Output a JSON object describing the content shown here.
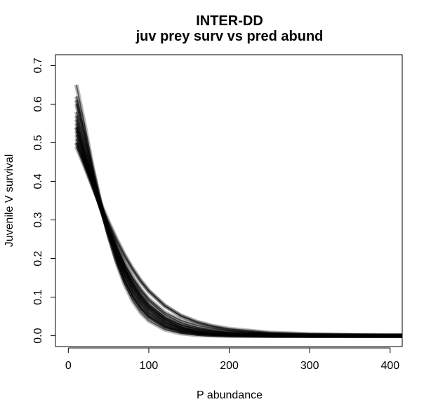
{
  "chart_data": {
    "type": "line",
    "title": "INTER-DD",
    "subtitle": "juv prey surv vs pred abund",
    "xlabel": "P abundance",
    "ylabel": "Juvenile V survival",
    "xlim": [
      -16,
      415
    ],
    "ylim": [
      -0.028,
      0.728
    ],
    "xticks": [
      0,
      100,
      200,
      300,
      400
    ],
    "yticks": [
      0.0,
      0.1,
      0.2,
      0.3,
      0.4,
      0.5,
      0.6,
      0.7
    ],
    "xtick_labels": [
      "0",
      "100",
      "200",
      "300",
      "400"
    ],
    "ytick_labels": [
      "0.0",
      "0.1",
      "0.2",
      "0.3",
      "0.4",
      "0.5",
      "0.6",
      "0.7"
    ],
    "grid": false,
    "legend": "none",
    "line_color": "#000000",
    "x": [
      10,
      20,
      30,
      40,
      50,
      60,
      70,
      80,
      90,
      100,
      120,
      140,
      160,
      180,
      200,
      250,
      300,
      350,
      400,
      415
    ],
    "series": [
      {
        "values": [
          0.54,
          0.465,
          0.4,
          0.335,
          0.275,
          0.22,
          0.17,
          0.13,
          0.1,
          0.075,
          0.045,
          0.028,
          0.018,
          0.012,
          0.008,
          0.003,
          0.001,
          0.0,
          0.0,
          0.0
        ]
      },
      {
        "values": [
          0.62,
          0.53,
          0.43,
          0.34,
          0.26,
          0.195,
          0.14,
          0.1,
          0.07,
          0.048,
          0.022,
          0.01,
          0.005,
          0.002,
          0.001,
          0.0,
          0.0,
          0.0,
          0.0,
          0.0
        ]
      },
      {
        "values": [
          0.5,
          0.445,
          0.39,
          0.335,
          0.28,
          0.23,
          0.185,
          0.15,
          0.12,
          0.095,
          0.06,
          0.04,
          0.027,
          0.019,
          0.013,
          0.005,
          0.002,
          0.001,
          0.0,
          0.0
        ]
      },
      {
        "values": [
          0.57,
          0.49,
          0.41,
          0.335,
          0.265,
          0.205,
          0.155,
          0.115,
          0.085,
          0.06,
          0.032,
          0.017,
          0.009,
          0.005,
          0.003,
          0.001,
          0.0,
          0.0,
          0.0,
          0.0
        ]
      },
      {
        "values": [
          0.6,
          0.515,
          0.425,
          0.34,
          0.262,
          0.195,
          0.143,
          0.102,
          0.072,
          0.05,
          0.024,
          0.011,
          0.005,
          0.002,
          0.001,
          0.0,
          0.0,
          0.0,
          0.0,
          0.0
        ]
      },
      {
        "values": [
          0.52,
          0.455,
          0.395,
          0.335,
          0.278,
          0.225,
          0.178,
          0.14,
          0.108,
          0.082,
          0.048,
          0.028,
          0.017,
          0.011,
          0.007,
          0.002,
          0.001,
          0.0,
          0.0,
          0.0
        ]
      },
      {
        "values": [
          0.56,
          0.48,
          0.405,
          0.333,
          0.268,
          0.21,
          0.162,
          0.122,
          0.09,
          0.066,
          0.035,
          0.018,
          0.01,
          0.005,
          0.003,
          0.001,
          0.0,
          0.0,
          0.0,
          0.0
        ]
      },
      {
        "values": [
          0.65,
          0.55,
          0.44,
          0.345,
          0.262,
          0.19,
          0.133,
          0.09,
          0.06,
          0.039,
          0.016,
          0.006,
          0.002,
          0.001,
          0.0,
          0.0,
          0.0,
          0.0,
          0.0,
          0.0
        ]
      },
      {
        "values": [
          0.49,
          0.44,
          0.388,
          0.338,
          0.29,
          0.245,
          0.205,
          0.17,
          0.14,
          0.115,
          0.077,
          0.052,
          0.036,
          0.025,
          0.018,
          0.008,
          0.004,
          0.002,
          0.001,
          0.001
        ]
      },
      {
        "values": [
          0.53,
          0.462,
          0.398,
          0.336,
          0.276,
          0.222,
          0.173,
          0.133,
          0.1,
          0.074,
          0.041,
          0.022,
          0.012,
          0.007,
          0.004,
          0.001,
          0.0,
          0.0,
          0.0,
          0.0
        ]
      },
      {
        "values": [
          0.58,
          0.5,
          0.418,
          0.34,
          0.27,
          0.208,
          0.156,
          0.114,
          0.082,
          0.058,
          0.028,
          0.013,
          0.006,
          0.003,
          0.001,
          0.0,
          0.0,
          0.0,
          0.0,
          0.0
        ]
      },
      {
        "values": [
          0.51,
          0.45,
          0.392,
          0.334,
          0.28,
          0.23,
          0.186,
          0.148,
          0.117,
          0.091,
          0.055,
          0.034,
          0.021,
          0.013,
          0.008,
          0.003,
          0.001,
          0.0,
          0.0,
          0.0
        ]
      },
      {
        "values": [
          0.55,
          0.472,
          0.4,
          0.332,
          0.27,
          0.214,
          0.166,
          0.126,
          0.094,
          0.069,
          0.036,
          0.019,
          0.01,
          0.005,
          0.003,
          0.0,
          0.0,
          0.0,
          0.0,
          0.0
        ]
      },
      {
        "values": [
          0.61,
          0.525,
          0.43,
          0.342,
          0.264,
          0.198,
          0.145,
          0.104,
          0.073,
          0.051,
          0.024,
          0.011,
          0.005,
          0.002,
          0.001,
          0.0,
          0.0,
          0.0,
          0.0,
          0.0
        ]
      },
      {
        "values": [
          0.5,
          0.448,
          0.395,
          0.344,
          0.295,
          0.25,
          0.209,
          0.174,
          0.143,
          0.117,
          0.078,
          0.051,
          0.034,
          0.023,
          0.015,
          0.006,
          0.002,
          0.001,
          0.0,
          0.0
        ]
      },
      {
        "values": [
          0.54,
          0.47,
          0.402,
          0.338,
          0.278,
          0.224,
          0.176,
          0.136,
          0.104,
          0.078,
          0.043,
          0.023,
          0.012,
          0.007,
          0.004,
          0.001,
          0.0,
          0.0,
          0.0,
          0.0
        ]
      }
    ]
  }
}
